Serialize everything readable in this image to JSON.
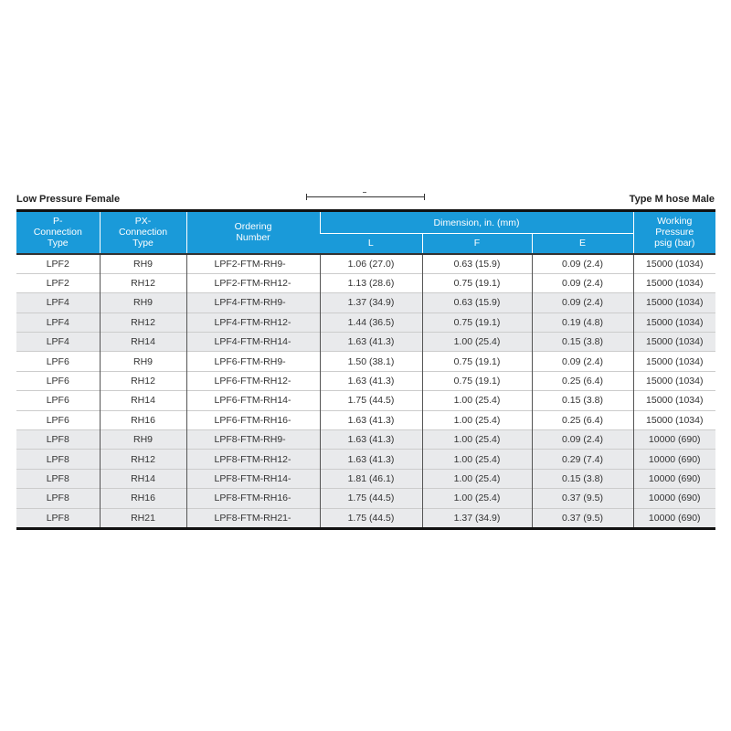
{
  "captions": {
    "left": "Low Pressure Female",
    "right": "Type M hose Male"
  },
  "headers": {
    "p": "P-\nConnection\nType",
    "px": "PX-\nConnection\nType",
    "ordering": "Ordering\nNumber",
    "dimension": "Dimension, in. (mm)",
    "l": "L",
    "f": "F",
    "e": "E",
    "pressure": "Working\nPressure\npsig (bar)"
  },
  "header_color": "#1a9ad9",
  "rows": [
    [
      "LPF2",
      "RH9",
      "LPF2-FTM-RH9-",
      "1.06 (27.0)",
      "0.63 (15.9)",
      "0.09 (2.4)",
      "15000 (1034)"
    ],
    [
      "LPF2",
      "RH12",
      "LPF2-FTM-RH12-",
      "1.13 (28.6)",
      "0.75 (19.1)",
      "0.09 (2.4)",
      "15000 (1034)"
    ],
    [
      "LPF4",
      "RH9",
      "LPF4-FTM-RH9-",
      "1.37 (34.9)",
      "0.63 (15.9)",
      "0.09 (2.4)",
      "15000 (1034)"
    ],
    [
      "LPF4",
      "RH12",
      "LPF4-FTM-RH12-",
      "1.44 (36.5)",
      "0.75 (19.1)",
      "0.19 (4.8)",
      "15000 (1034)"
    ],
    [
      "LPF4",
      "RH14",
      "LPF4-FTM-RH14-",
      "1.63 (41.3)",
      "1.00 (25.4)",
      "0.15 (3.8)",
      "15000 (1034)"
    ],
    [
      "LPF6",
      "RH9",
      "LPF6-FTM-RH9-",
      "1.50 (38.1)",
      "0.75 (19.1)",
      "0.09 (2.4)",
      "15000 (1034)"
    ],
    [
      "LPF6",
      "RH12",
      "LPF6-FTM-RH12-",
      "1.63 (41.3)",
      "0.75 (19.1)",
      "0.25 (6.4)",
      "15000 (1034)"
    ],
    [
      "LPF6",
      "RH14",
      "LPF6-FTM-RH14-",
      "1.75 (44.5)",
      "1.00 (25.4)",
      "0.15 (3.8)",
      "15000 (1034)"
    ],
    [
      "LPF6",
      "RH16",
      "LPF6-FTM-RH16-",
      "1.63 (41.3)",
      "1.00 (25.4)",
      "0.25 (6.4)",
      "15000 (1034)"
    ],
    [
      "LPF8",
      "RH9",
      "LPF8-FTM-RH9-",
      "1.63 (41.3)",
      "1.00 (25.4)",
      "0.09 (2.4)",
      "10000 (690)"
    ],
    [
      "LPF8",
      "RH12",
      "LPF8-FTM-RH12-",
      "1.63 (41.3)",
      "1.00 (25.4)",
      "0.29 (7.4)",
      "10000 (690)"
    ],
    [
      "LPF8",
      "RH14",
      "LPF8-FTM-RH14-",
      "1.81 (46.1)",
      "1.00 (25.4)",
      "0.15 (3.8)",
      "10000 (690)"
    ],
    [
      "LPF8",
      "RH16",
      "LPF8-FTM-RH16-",
      "1.75 (44.5)",
      "1.00 (25.4)",
      "0.37 (9.5)",
      "10000 (690)"
    ],
    [
      "LPF8",
      "RH21",
      "LPF8-FTM-RH21-",
      "1.75 (44.5)",
      "1.37 (34.9)",
      "0.37 (9.5)",
      "10000 (690)"
    ]
  ]
}
